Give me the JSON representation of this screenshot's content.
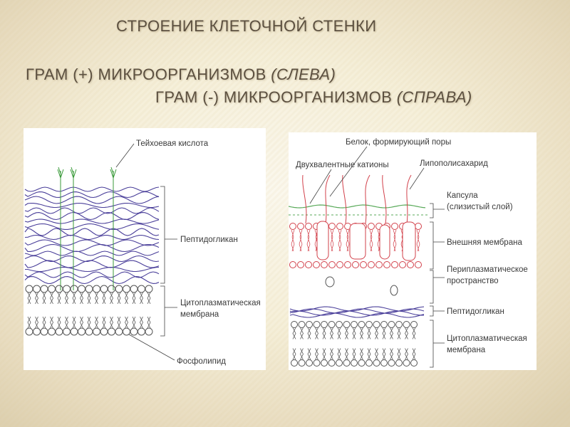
{
  "slide": {
    "title_line1": "СТРОЕНИЕ КЛЕТОЧНОЙ СТЕНКИ",
    "title_line2_main": "ГРАМ (+)  МИКРООРГАНИЗМОВ ",
    "title_line2_italic": "(СЛЕВА)",
    "title_line3_main": "ГРАМ (-)  МИКРООРГАНИЗМОВ ",
    "title_line3_italic": "(СПРАВА)"
  },
  "left_diagram": {
    "labels": {
      "teichoic_acid": "Тейхоевая кислота",
      "peptidoglycan": "Пептидогликан",
      "cyto_membrane_1": "Цитоплазматическая",
      "cyto_membrane_2": "мембрана",
      "phospholipid": "Фосфолипид"
    }
  },
  "right_diagram": {
    "labels": {
      "pore_protein": "Белок, формирующий поры",
      "divalent_cations": "Двухвалентные катионы",
      "lipopolysaccharide": "Липополисахарид",
      "capsule_1": "Капсула",
      "capsule_2": "(слизистый слой)",
      "outer_membrane": "Внешняя мембрана",
      "periplasm_1": "Периплазматическое",
      "periplasm_2": "пространство",
      "peptidoglycan": "Пептидогликан",
      "cyto_membrane_1": "Цитоплазматическая",
      "cyto_membrane_2": "мембрана"
    }
  },
  "colors": {
    "title": "#5c5040",
    "peptidoglycan": "#4a3f9a",
    "outer_membrane": "#d2404a",
    "capsule": "#5aaa5a",
    "membrane": "#555555",
    "leader": "#444444"
  }
}
